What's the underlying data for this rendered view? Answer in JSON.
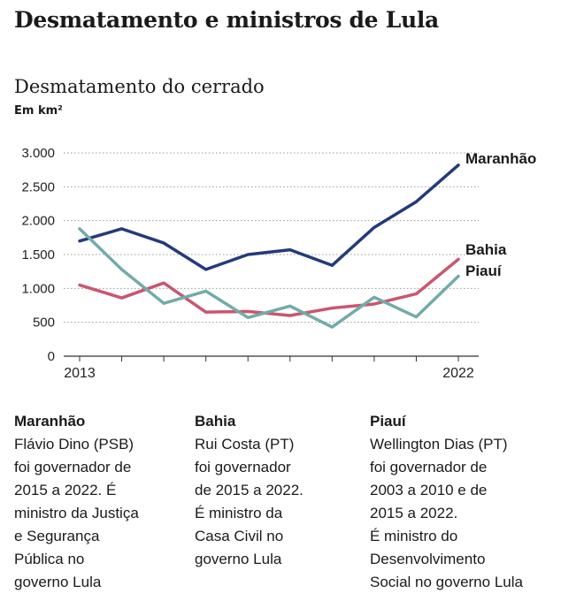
{
  "title": "Desmatamento e ministros de Lula",
  "chart_data": {
    "type": "line",
    "title": "Desmatamento do cerrado",
    "unit": "Em km²",
    "x": [
      2013,
      2014,
      2015,
      2016,
      2017,
      2018,
      2019,
      2020,
      2021,
      2022
    ],
    "x_tick_labels": [
      "2013",
      "2022"
    ],
    "ylim": [
      0,
      3000
    ],
    "y_ticks": [
      0,
      500,
      1000,
      1500,
      2000,
      2500,
      3000
    ],
    "y_tick_labels": [
      "0",
      "500",
      "1.000",
      "1.500",
      "2.000",
      "2.500",
      "3.000"
    ],
    "grid": "horizontal dotted",
    "series": [
      {
        "name": "Maranhão",
        "color": "#243a7a",
        "values": [
          1700,
          1880,
          1670,
          1280,
          1500,
          1570,
          1340,
          1900,
          2280,
          2820
        ]
      },
      {
        "name": "Bahia",
        "color": "#c9566f",
        "values": [
          1050,
          860,
          1080,
          650,
          660,
          600,
          710,
          770,
          920,
          1430
        ]
      },
      {
        "name": "Piauí",
        "color": "#72aba8",
        "values": [
          1880,
          1280,
          780,
          960,
          570,
          740,
          430,
          870,
          580,
          1180
        ]
      }
    ]
  },
  "notes": [
    {
      "state": "Maranhão",
      "text": "Flávio Dino (PSB)\nfoi governador de\n2015 a 2022. É\nministro da Justiça\ne Segurança\nPública no\ngoverno Lula"
    },
    {
      "state": "Bahia",
      "text": "Rui Costa (PT)\nfoi governador\nde 2015 a 2022.\nÉ ministro da\nCasa Civil no\ngoverno Lula"
    },
    {
      "state": "Piauí",
      "text": "Wellington Dias (PT)\nfoi governador de\n2003 a 2010 e de\n2015 a 2022.\nÉ ministro do\nDesenvolvimento\nSocial no governo Lula"
    }
  ]
}
